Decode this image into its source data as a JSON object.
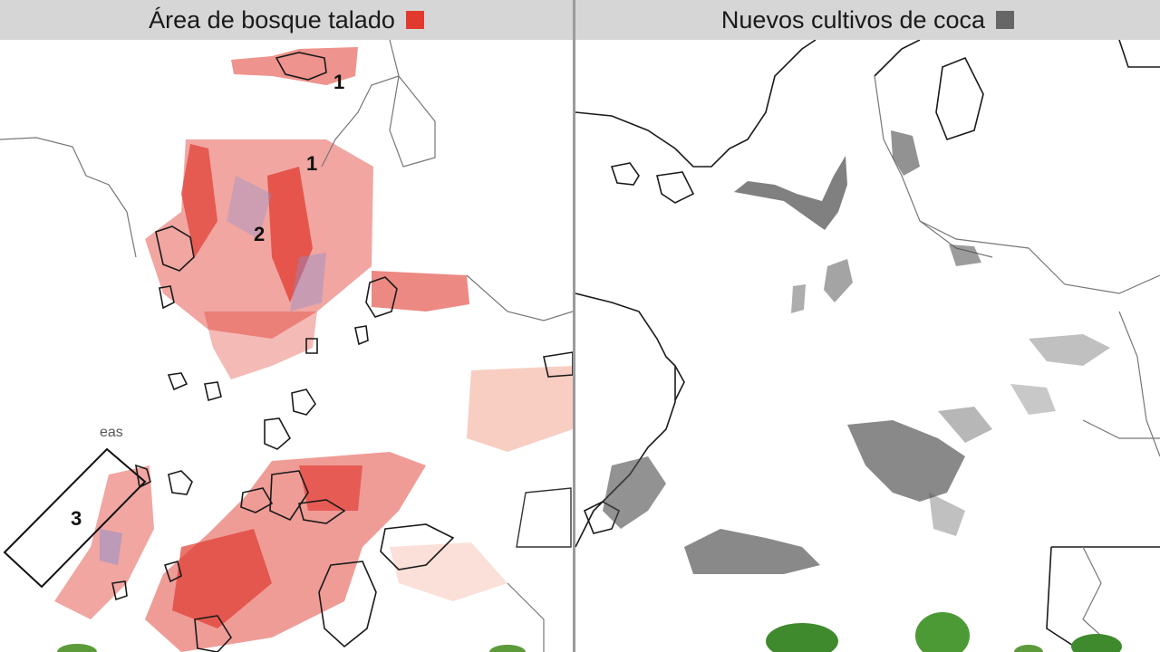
{
  "panels": {
    "left": {
      "title": "Área de bosque talado",
      "legend_color": "#e03a2f",
      "labels": [
        "1",
        "1",
        "2",
        "3"
      ],
      "faint_text": "eas"
    },
    "right": {
      "title": "Nuevos cultivos de coca",
      "legend_color": "#666666"
    }
  },
  "colors": {
    "deforestation": "#e03a2f",
    "deforestation_light": "#f2a58f",
    "secondary": "#8a8ed0",
    "coca": "#4a4a4a",
    "borders": "#1a1a1a",
    "header_bg": "#d6d6d6"
  },
  "icons": [
    "leaf-icon"
  ]
}
